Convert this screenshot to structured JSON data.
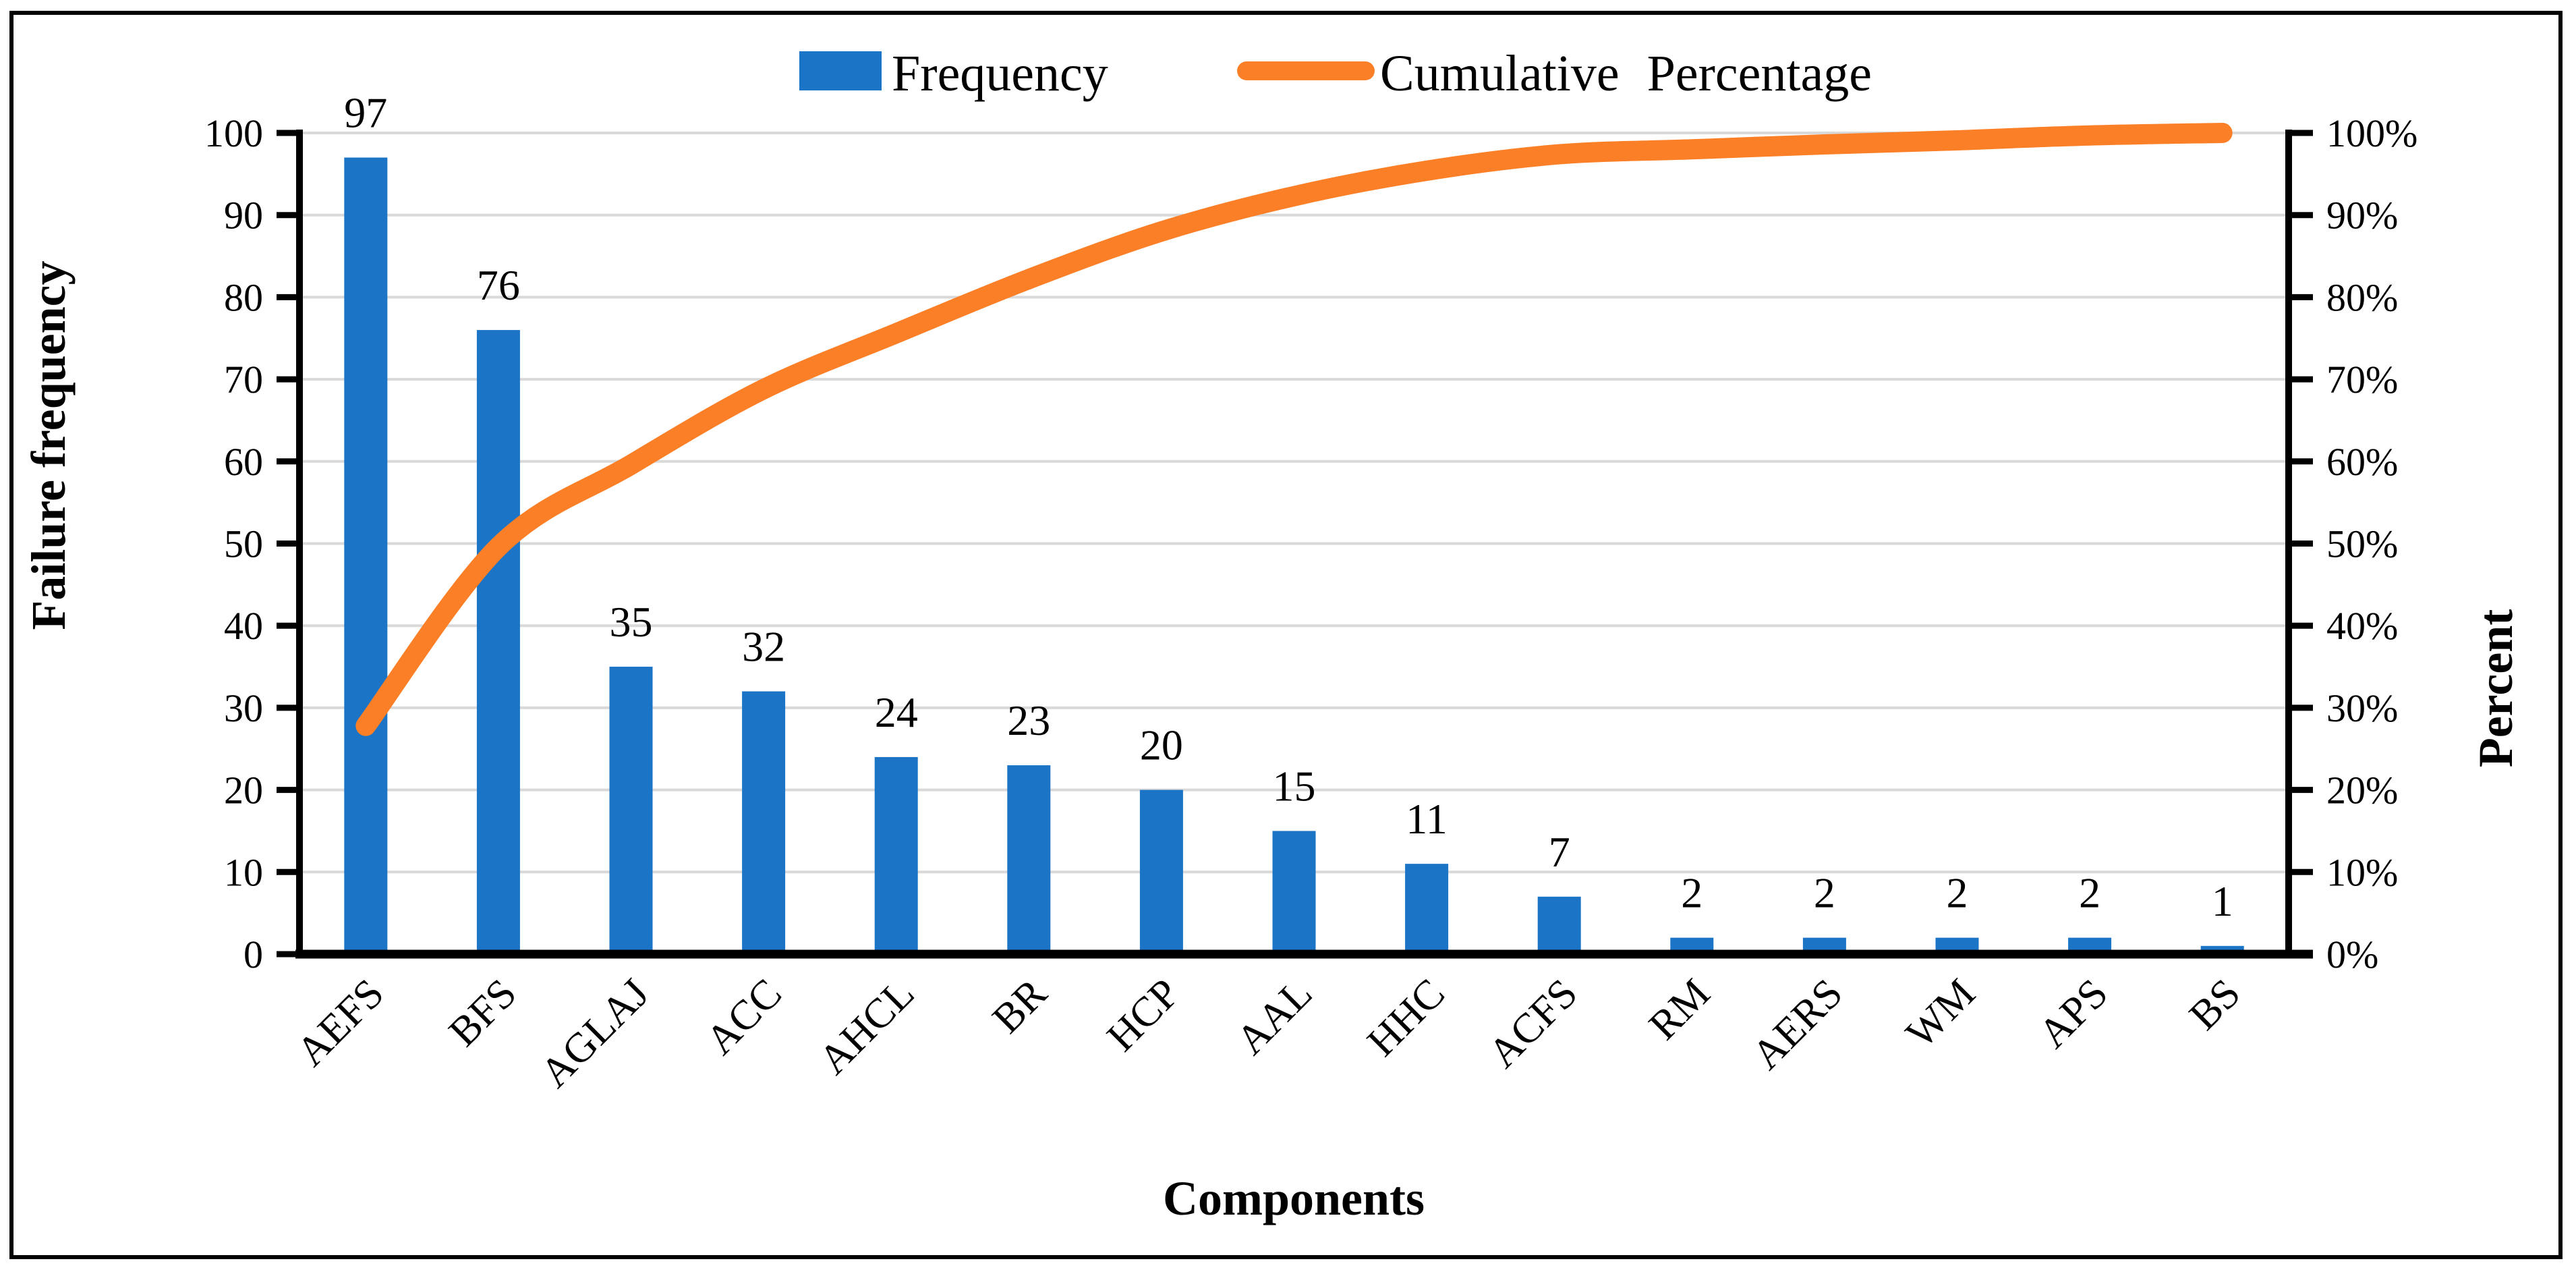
{
  "figure": {
    "colors": {
      "bar": "#1B74C6",
      "line": "#FB7F27",
      "gridline": "#D9D9D9",
      "axis": "#000000"
    }
  },
  "legend": {
    "items": [
      {
        "label": "Frequency",
        "swatch": "bar-swatch",
        "color": "#1B74C6"
      },
      {
        "label": "Cumulative Percentage",
        "swatch": "line-swatch",
        "color": "#FB7F27"
      }
    ]
  },
  "axes": {
    "left": {
      "title": "Failure frequency",
      "ticks": [
        "0",
        "10",
        "20",
        "30",
        "40",
        "50",
        "60",
        "70",
        "80",
        "90",
        "100"
      ],
      "range": [
        0,
        100
      ]
    },
    "right": {
      "title": "Percent",
      "ticks": [
        "0%",
        "10%",
        "20%",
        "30%",
        "40%",
        "50%",
        "60%",
        "70%",
        "80%",
        "90%",
        "100%"
      ],
      "range": [
        0,
        100
      ]
    },
    "x": {
      "title": "Components"
    }
  },
  "chart_data": {
    "type": "pareto",
    "categories": [
      "AEFS",
      "BFS",
      "AGLAJ",
      "ACC",
      "AHCL",
      "BR",
      "HCP",
      "AAL",
      "HHC",
      "ACFS",
      "RM",
      "AERS",
      "WM",
      "APS",
      "BS"
    ],
    "series": [
      {
        "name": "Frequency",
        "type": "bar",
        "values": [
          97,
          76,
          35,
          32,
          24,
          23,
          20,
          15,
          11,
          7,
          2,
          2,
          2,
          2,
          1
        ],
        "data_labels": [
          "97",
          "76",
          "35",
          "32",
          "24",
          "23",
          "20",
          "15",
          "11",
          "7",
          "2",
          "2",
          "2",
          "2",
          "1"
        ]
      },
      {
        "name": "Cumulative Percentage",
        "type": "line",
        "values_pct": [
          27.8,
          49.6,
          59.6,
          68.8,
          75.6,
          82.2,
          88.0,
          92.3,
          95.4,
          97.4,
          98.0,
          98.6,
          99.1,
          99.7,
          100.0
        ]
      }
    ],
    "ylabel_left": "Failure frequency",
    "ylabel_right": "Percent",
    "xlabel": "Components",
    "ylim_left": [
      0,
      100
    ],
    "ylim_right_pct": [
      0,
      100
    ],
    "grid": true,
    "legend_position": "top-center"
  }
}
